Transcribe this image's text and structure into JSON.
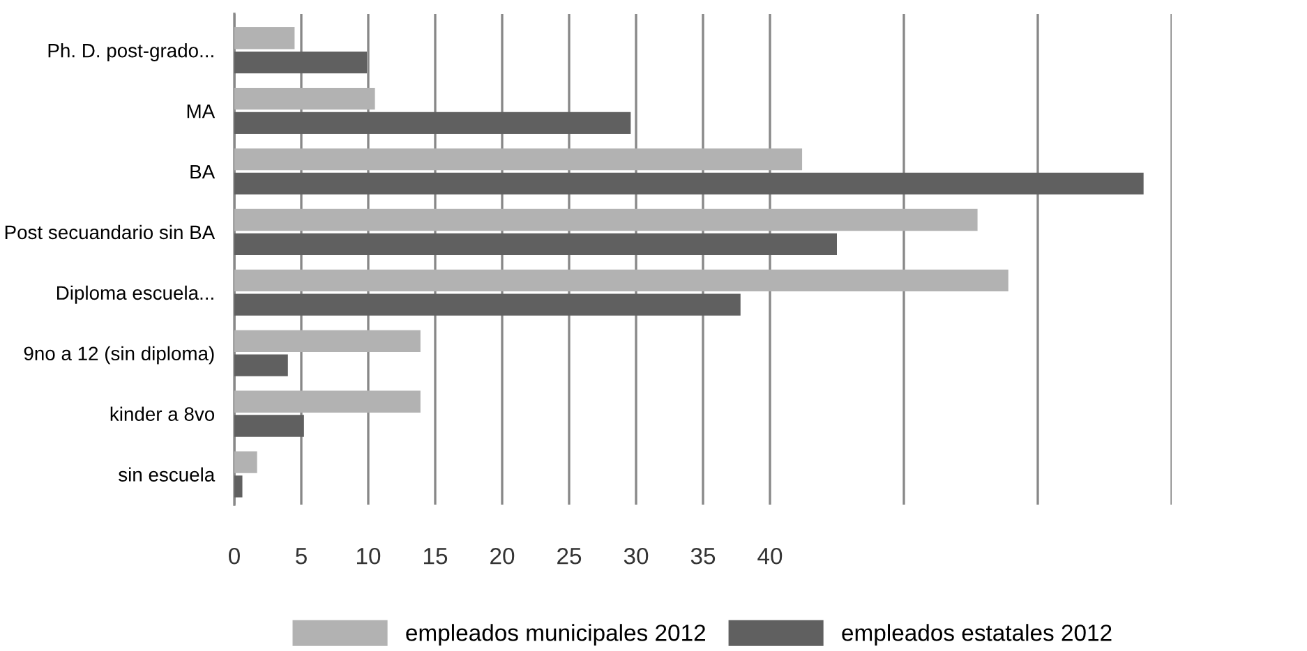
{
  "chart_data": {
    "type": "bar",
    "orientation": "horizontal",
    "categories": [
      "Ph. D. post-grado...",
      "MA",
      "BA",
      "Post secuandario sin BA",
      "Diploma escuela...",
      "9no a 12 (sin diploma)",
      "kinder a 8vo",
      "sin escuela"
    ],
    "series": [
      {
        "name": "empleados municipales 2012",
        "color": "#b2b2b2",
        "values": [
          4.5,
          10.5,
          42.4,
          55.5,
          57.8,
          13.9,
          13.9,
          1.7
        ]
      },
      {
        "name": "empleados estatales 2012",
        "color": "#606060",
        "values": [
          9.9,
          29.6,
          67.9,
          45.0,
          37.8,
          4.0,
          5.2,
          0.6
        ]
      }
    ],
    "xlim": [
      0,
      70
    ],
    "xticks": [
      0,
      5,
      10,
      15,
      20,
      25,
      30,
      35,
      40,
      {
        "value": 50,
        "label": null
      },
      {
        "value": 60,
        "label": null
      },
      {
        "value": 70,
        "label": null
      }
    ],
    "grid": "x",
    "legend": "bottom"
  }
}
